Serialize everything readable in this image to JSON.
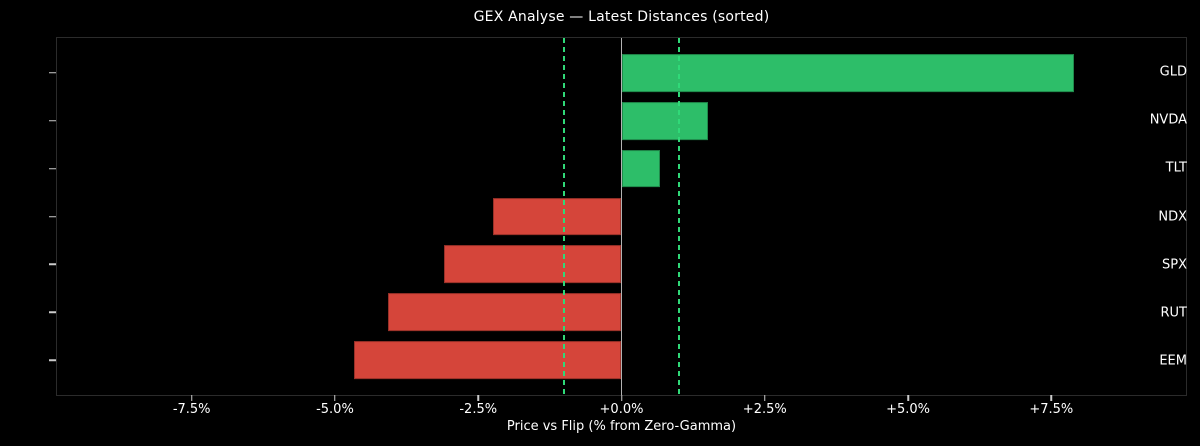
{
  "chart_data": {
    "type": "bar",
    "orientation": "horizontal",
    "title": "GEX Analyse — Latest Distances (sorted)",
    "xlabel": "Price vs Flip (% from Zero-Gamma)",
    "ylabel": "",
    "categories": [
      "GLD",
      "NVDA",
      "TLT",
      "NDX",
      "SPX",
      "RUT",
      "EEM"
    ],
    "values": [
      7.9,
      1.51,
      0.68,
      -2.25,
      -3.1,
      -4.08,
      -4.67
    ],
    "unit": "%",
    "xlim": [
      -9.85,
      9.85
    ],
    "x_ticks": [
      {
        "value": -7.5,
        "label": "-7.5%"
      },
      {
        "value": -5.0,
        "label": "-5.0%"
      },
      {
        "value": -2.5,
        "label": "-2.5%"
      },
      {
        "value": 0.0,
        "label": "+0.0%"
      },
      {
        "value": 2.5,
        "label": "+2.5%"
      },
      {
        "value": 5.0,
        "label": "+5.0%"
      },
      {
        "value": 7.5,
        "label": "+7.5%"
      }
    ],
    "threshold_lines": [
      -1.0,
      1.0
    ],
    "zero_line": 0.0,
    "grid": false,
    "legend": false,
    "colors": {
      "background": "#000000",
      "positive_bar": "#2dbe69",
      "negative_bar": "#d5453a",
      "threshold_line": "#30d978",
      "zero_line": "#b3b3b3",
      "spine": "#2b2b2b",
      "text": "#ffffff",
      "tick_mark": "#cccccc"
    }
  }
}
